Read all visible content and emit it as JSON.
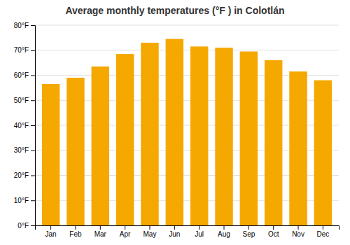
{
  "chart_data": {
    "type": "bar",
    "title": "Average monthly temperatures (°F ) in Colotlán",
    "categories": [
      "Jan",
      "Feb",
      "Mar",
      "Apr",
      "May",
      "Jun",
      "Jul",
      "Aug",
      "Sep",
      "Oct",
      "Nov",
      "Dec"
    ],
    "values": [
      56.5,
      59.0,
      63.5,
      68.5,
      73.0,
      74.5,
      71.5,
      71.0,
      69.5,
      66.0,
      61.5,
      58.0
    ],
    "color": "#F5A800",
    "ylim": [
      0,
      80
    ],
    "yticks": [
      {
        "value": 0,
        "label": "0°F"
      },
      {
        "value": 10,
        "label": "10°F"
      },
      {
        "value": 20,
        "label": "20°F"
      },
      {
        "value": 30,
        "label": "30°F"
      },
      {
        "value": 40,
        "label": "40°F"
      },
      {
        "value": 50,
        "label": "50°F"
      },
      {
        "value": 60,
        "label": "60°F"
      },
      {
        "value": 70,
        "label": "70°F"
      },
      {
        "value": 80,
        "label": "80°F"
      }
    ],
    "grid": true
  }
}
